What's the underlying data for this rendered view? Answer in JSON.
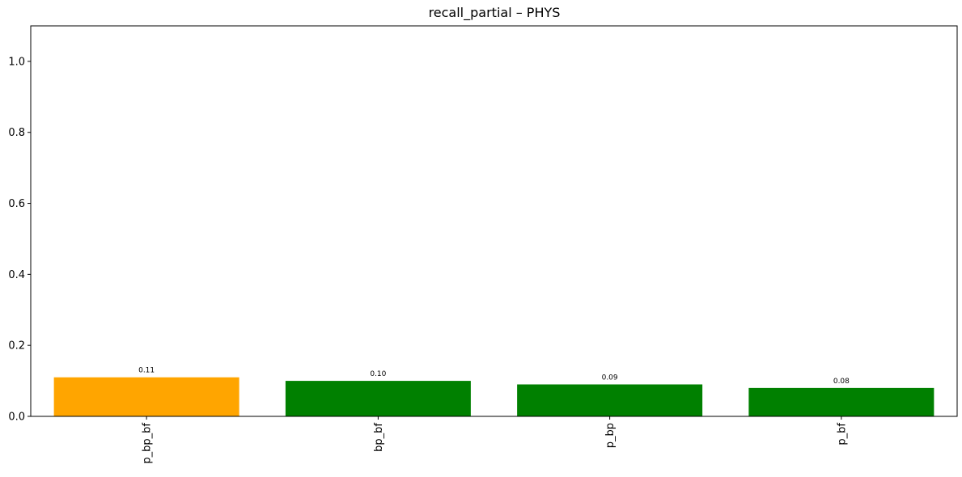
{
  "chart_data": {
    "type": "bar",
    "title": "recall_partial – PHYS",
    "categories": [
      "p_bp_bf",
      "bp_bf",
      "p_bp",
      "p_bf"
    ],
    "values": [
      0.11,
      0.1,
      0.09,
      0.08
    ],
    "data_labels": [
      "0.11",
      "0.10",
      "0.09",
      "0.08"
    ],
    "bar_colors": [
      "#ffa500",
      "#008000",
      "#008000",
      "#008000"
    ],
    "ylim": [
      0,
      1.1
    ],
    "yticks": [
      0.0,
      0.2,
      0.4,
      0.6,
      0.8,
      1.0
    ],
    "ytick_labels": [
      "0.0",
      "0.2",
      "0.4",
      "0.6",
      "0.8",
      "1.0"
    ],
    "xlabel": "",
    "ylabel": "",
    "grid": false,
    "legend": false
  }
}
